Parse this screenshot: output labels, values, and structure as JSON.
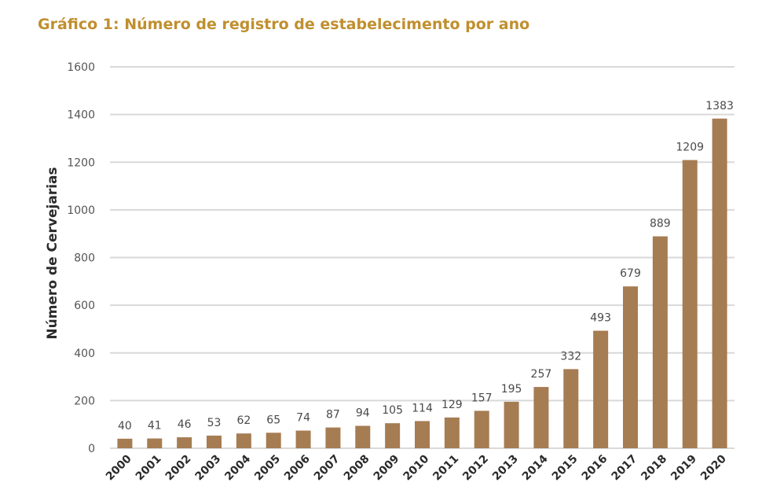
{
  "title": "Gráfico 1: Número de registro de estabelecimento por ano",
  "chart_data": {
    "type": "bar",
    "title": "Gráfico 1: Número de registro de estabelecimento por ano",
    "xlabel": "",
    "ylabel": "Número de Cervejarias",
    "ylim": [
      0,
      1600
    ],
    "yticks": [
      "0",
      "200",
      "400",
      "600",
      "800",
      "1000",
      "1200",
      "1400",
      "1600"
    ],
    "grid": true,
    "legend": "none",
    "bar_color": "#a67c52",
    "highlight_label_color": "#a08868",
    "categories": [
      "2000",
      "2001",
      "2002",
      "2003",
      "2004",
      "2005",
      "2006",
      "2007",
      "2008",
      "2009",
      "2010",
      "2011",
      "2012",
      "2013",
      "2014",
      "2015",
      "2016",
      "2017",
      "2018",
      "2019",
      "2020"
    ],
    "values": [
      40,
      41,
      46,
      53,
      62,
      65,
      74,
      87,
      94,
      105,
      114,
      129,
      157,
      195,
      257,
      332,
      493,
      679,
      889,
      1209,
      1383
    ],
    "data_labels": [
      "40",
      "41",
      "46",
      "53",
      "62",
      "65",
      "74",
      "87",
      "94",
      "105",
      "114",
      "129",
      "157",
      "195",
      "257",
      "332",
      "493",
      "679",
      "889",
      "1209",
      "1383"
    ]
  }
}
